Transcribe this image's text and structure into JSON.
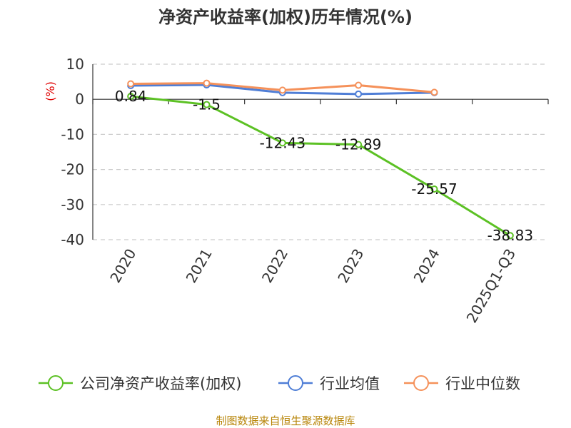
{
  "chart_data": {
    "type": "line",
    "title": "净资产收益率(加权)历年情况(%)",
    "unit_label": "(%)",
    "categories": [
      "2020",
      "2021",
      "2022",
      "2023",
      "2024",
      "2025Q1-Q3"
    ],
    "ylim": [
      -40,
      10
    ],
    "yticks": [
      10,
      0,
      -10,
      -20,
      -30,
      -40
    ],
    "grid": true,
    "legend_position": "bottom",
    "series": [
      {
        "name": "公司净资产收益率(加权)",
        "color": "#5cc124",
        "values": [
          0.84,
          -1.5,
          -12.43,
          -12.89,
          -25.57,
          -38.83
        ],
        "labels": [
          "0.84",
          "-1.5",
          "-12.43",
          "-12.89",
          "-25.57",
          "-38.83"
        ]
      },
      {
        "name": "行业均值",
        "color": "#4f7ed6",
        "values": [
          3.9,
          4.1,
          1.9,
          1.5,
          1.9,
          null
        ]
      },
      {
        "name": "行业中位数",
        "color": "#f5915a",
        "values": [
          4.4,
          4.6,
          2.6,
          4.0,
          2.0,
          null
        ]
      }
    ],
    "source": "制图数据来自恒生聚源数据库"
  }
}
